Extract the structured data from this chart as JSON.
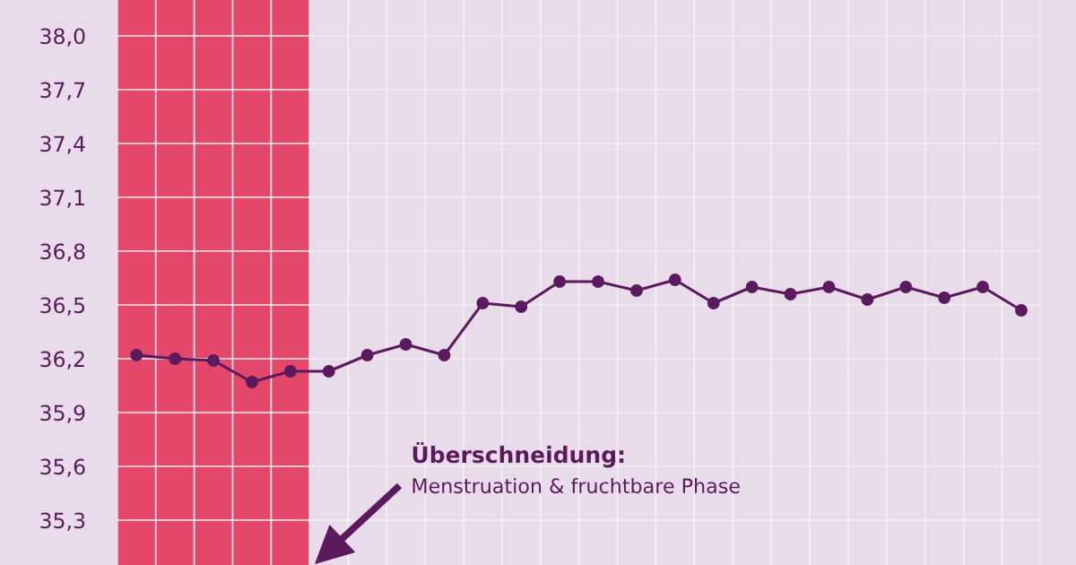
{
  "chart_data": {
    "type": "line",
    "categories": [
      null,
      null,
      null,
      null,
      null,
      null,
      null,
      null,
      null,
      null,
      null,
      null,
      null,
      null,
      null,
      null,
      null,
      null,
      null,
      null,
      null,
      null,
      null,
      null
    ],
    "series": [
      {
        "color": "#5c1a5e",
        "values": [
          36.22,
          36.2,
          36.19,
          36.07,
          36.13,
          36.13,
          36.22,
          36.28,
          36.22,
          36.51,
          36.49,
          36.63,
          36.63,
          36.58,
          36.64,
          36.51,
          36.6,
          36.56,
          36.6,
          36.53,
          36.6,
          36.54,
          36.6,
          36.47
        ]
      }
    ],
    "ylim": [
      35.05,
      38.2
    ],
    "yticks": [
      {
        "value": 35.3,
        "label": "35,3"
      },
      {
        "value": 35.6,
        "label": "35,6"
      },
      {
        "value": 35.9,
        "label": "35,9"
      },
      {
        "value": 36.2,
        "label": "36,2"
      },
      {
        "value": 36.5,
        "label": "36,5"
      },
      {
        "value": 36.8,
        "label": "36,8"
      },
      {
        "value": 37.1,
        "label": "37,1"
      },
      {
        "value": 37.4,
        "label": "37,4"
      },
      {
        "value": 37.7,
        "label": "37,7"
      },
      {
        "value": 38.0,
        "label": "38,0"
      }
    ],
    "annotations": [
      "Überschneidung:",
      "Menstruation & fruchtbare Phase"
    ],
    "grid": true,
    "marker": "circle",
    "line_style": "solid",
    "legend": false,
    "tick_labels": "y"
  }
}
